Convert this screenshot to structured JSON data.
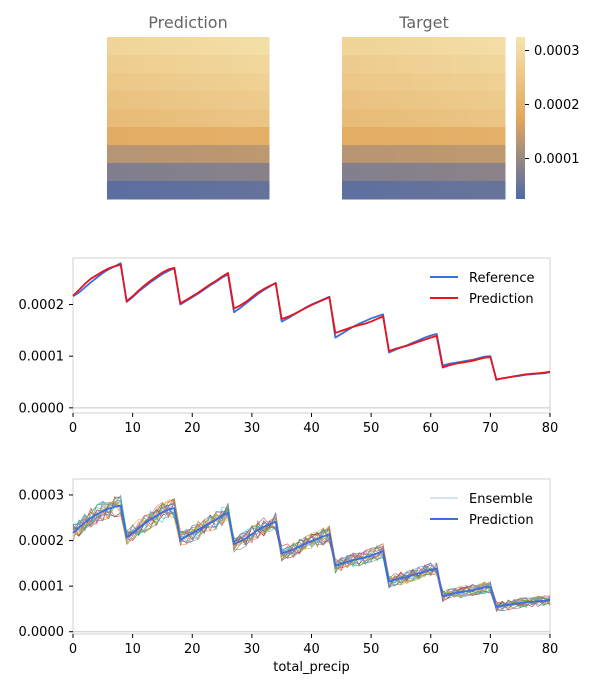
{
  "colors": {
    "heat_low": "#4f69a6",
    "heat_mid": "#e2a85e",
    "heat_high": "#f5e4ae",
    "reference": "#3a6fe0",
    "prediction": "#e8141c",
    "ensemble_prediction": "#3a6fe0",
    "axes_spine": "#d0d0d0",
    "title_text": "#666666"
  },
  "chart_data": [
    {
      "type": "heatmap",
      "title": "Prediction",
      "rows": 9,
      "cols": 9,
      "row_means": [
        0.000298,
        0.00028,
        0.000266,
        0.000251,
        0.000235,
        0.00019,
        0.000133,
        7.9e-05,
        4.2e-05
      ],
      "col_offsets": [
        -1.2e-05,
        -9e-06,
        -6e-06,
        -3e-06,
        0.0,
        3e-06,
        6e-06,
        9e-06,
        1.2e-05
      ]
    },
    {
      "type": "heatmap",
      "title": "Target",
      "rows": 9,
      "cols": 9,
      "row_means": [
        0.000296,
        0.000278,
        0.000264,
        0.00025,
        0.000236,
        0.000191,
        0.000135,
        8.2e-05,
        4.5e-05
      ],
      "col_offsets": [
        -1.2e-05,
        -9e-06,
        -6e-06,
        -3e-06,
        0.0,
        3e-06,
        6e-06,
        9e-06,
        1.2e-05
      ],
      "colorbar": {
        "min": 2.5e-05,
        "max": 0.000325,
        "ticks": [
          {
            "value": 0.0001,
            "label": "0.0001"
          },
          {
            "value": 0.0002,
            "label": "0.0002"
          },
          {
            "value": 0.0003,
            "label": "0.0003"
          }
        ]
      }
    },
    {
      "type": "line",
      "xlabel": "",
      "xlim": [
        0,
        80
      ],
      "ylim": [
        -1e-05,
        0.00029
      ],
      "xticks": [
        {
          "value": 0,
          "label": "0"
        },
        {
          "value": 10,
          "label": "10"
        },
        {
          "value": 20,
          "label": "20"
        },
        {
          "value": 30,
          "label": "30"
        },
        {
          "value": 40,
          "label": "40"
        },
        {
          "value": 50,
          "label": "50"
        },
        {
          "value": 60,
          "label": "60"
        },
        {
          "value": 70,
          "label": "70"
        },
        {
          "value": 80,
          "label": "80"
        }
      ],
      "yticks": [
        {
          "value": 0,
          "label": "0.0000"
        },
        {
          "value": 0.0001,
          "label": "0.0001"
        },
        {
          "value": 0.0002,
          "label": "0.0002"
        }
      ],
      "legend": {
        "position": "top-right"
      },
      "series": [
        {
          "name": "Reference",
          "x": [
            0,
            1,
            2,
            3,
            4,
            5,
            6,
            7,
            8,
            9,
            10,
            11,
            12,
            13,
            14,
            15,
            16,
            17,
            18,
            19,
            20,
            21,
            22,
            23,
            24,
            25,
            26,
            27,
            28,
            29,
            30,
            31,
            32,
            33,
            34,
            35,
            36,
            37,
            38,
            39,
            40,
            41,
            42,
            43,
            44,
            45,
            46,
            47,
            48,
            49,
            50,
            51,
            52,
            53,
            54,
            55,
            56,
            57,
            58,
            59,
            60,
            61,
            62,
            63,
            64,
            65,
            66,
            67,
            68,
            69,
            70,
            71,
            72,
            73,
            74,
            75,
            76,
            77,
            78,
            79,
            80
          ],
          "y": [
            0.000216,
            0.000223,
            0.000233,
            0.000243,
            0.000252,
            0.000261,
            0.000268,
            0.000274,
            0.00028,
            0.000205,
            0.000214,
            0.000225,
            0.000234,
            0.000243,
            0.000251,
            0.000259,
            0.000265,
            0.00027,
            0.0002,
            0.000207,
            0.000214,
            0.000221,
            0.000229,
            0.000237,
            0.000244,
            0.000252,
            0.000258,
            0.000185,
            0.000193,
            0.000202,
            0.000211,
            0.00022,
            0.000228,
            0.000235,
            0.000242,
            0.000167,
            0.000173,
            0.00018,
            0.000187,
            0.000194,
            0.0002,
            0.000205,
            0.00021,
            0.000215,
            0.000136,
            0.000143,
            0.00015,
            0.000157,
            0.000163,
            0.000168,
            0.000173,
            0.000177,
            0.000181,
            0.000107,
            0.000112,
            0.000117,
            0.000121,
            0.000126,
            0.000131,
            0.000136,
            0.00014,
            0.000143,
            8.2e-05,
            8.5e-05,
            8.7e-05,
            8.9e-05,
            9.1e-05,
            9.3e-05,
            9.6e-05,
            9.9e-05,
            0.0001,
            5.4e-05,
            5.7e-05,
            5.9e-05,
            6.1e-05,
            6.2e-05,
            6.4e-05,
            6.5e-05,
            6.6e-05,
            6.7e-05,
            6.9e-05
          ]
        },
        {
          "name": "Prediction",
          "x": [
            0,
            1,
            2,
            3,
            4,
            5,
            6,
            7,
            8,
            9,
            10,
            11,
            12,
            13,
            14,
            15,
            16,
            17,
            18,
            19,
            20,
            21,
            22,
            23,
            24,
            25,
            26,
            27,
            28,
            29,
            30,
            31,
            32,
            33,
            34,
            35,
            36,
            37,
            38,
            39,
            40,
            41,
            42,
            43,
            44,
            45,
            46,
            47,
            48,
            49,
            50,
            51,
            52,
            53,
            54,
            55,
            56,
            57,
            58,
            59,
            60,
            61,
            62,
            63,
            64,
            65,
            66,
            67,
            68,
            69,
            70,
            71,
            72,
            73,
            74,
            75,
            76,
            77,
            78,
            79,
            80
          ],
          "y": [
            0.000217,
            0.000228,
            0.00024,
            0.00025,
            0.000257,
            0.000264,
            0.00027,
            0.000274,
            0.000277,
            0.000206,
            0.000216,
            0.000227,
            0.000237,
            0.000246,
            0.000254,
            0.000262,
            0.000268,
            0.000271,
            0.000202,
            0.000209,
            0.000216,
            0.000223,
            0.000231,
            0.000239,
            0.000246,
            0.000254,
            0.000261,
            0.000192,
            0.000198,
            0.000205,
            0.000214,
            0.000223,
            0.00023,
            0.000236,
            0.000241,
            0.000172,
            0.000176,
            0.000181,
            0.000187,
            0.000193,
            0.000199,
            0.000204,
            0.000209,
            0.000214,
            0.000145,
            0.000149,
            0.000153,
            0.000157,
            0.00016,
            0.000163,
            0.000167,
            0.000172,
            0.000177,
            0.00011,
            0.000114,
            0.000117,
            0.00012,
            0.000124,
            0.000128,
            0.000132,
            0.000136,
            0.000139,
            7.8e-05,
            8.2e-05,
            8.5e-05,
            8.7e-05,
            8.9e-05,
            9.1e-05,
            9.4e-05,
            9.7e-05,
            9.8e-05,
            5.5e-05,
            5.7e-05,
            5.9e-05,
            6.1e-05,
            6.3e-05,
            6.5e-05,
            6.6e-05,
            6.7e-05,
            6.8e-05,
            7e-05
          ]
        }
      ]
    },
    {
      "type": "line",
      "xlabel": "total_precip",
      "xlim": [
        0,
        80
      ],
      "ylim": [
        -5e-06,
        0.000335
      ],
      "xticks": [
        {
          "value": 0,
          "label": "0"
        },
        {
          "value": 10,
          "label": "10"
        },
        {
          "value": 20,
          "label": "20"
        },
        {
          "value": 30,
          "label": "30"
        },
        {
          "value": 40,
          "label": "40"
        },
        {
          "value": 50,
          "label": "50"
        },
        {
          "value": 60,
          "label": "60"
        },
        {
          "value": 70,
          "label": "70"
        },
        {
          "value": 80,
          "label": "80"
        }
      ],
      "yticks": [
        {
          "value": 0,
          "label": "0.0000"
        },
        {
          "value": 0.0001,
          "label": "0.0001"
        },
        {
          "value": 0.0002,
          "label": "0.0002"
        },
        {
          "value": 0.0003,
          "label": "0.0003"
        }
      ],
      "legend": {
        "position": "top-right"
      },
      "ensemble_members": 20,
      "ensemble_spread": 2.4e-05,
      "ensemble_colors": [
        "#1f77b4",
        "#ff7f0e",
        "#2ca02c",
        "#d62728",
        "#9467bd",
        "#8c564b",
        "#e377c2",
        "#7f7f7f",
        "#bcbd22",
        "#17becf"
      ],
      "series": [
        {
          "name": "Ensemble",
          "style": "thin multicolor lines"
        },
        {
          "name": "Prediction",
          "x": [
            0,
            1,
            2,
            3,
            4,
            5,
            6,
            7,
            8,
            9,
            10,
            11,
            12,
            13,
            14,
            15,
            16,
            17,
            18,
            19,
            20,
            21,
            22,
            23,
            24,
            25,
            26,
            27,
            28,
            29,
            30,
            31,
            32,
            33,
            34,
            35,
            36,
            37,
            38,
            39,
            40,
            41,
            42,
            43,
            44,
            45,
            46,
            47,
            48,
            49,
            50,
            51,
            52,
            53,
            54,
            55,
            56,
            57,
            58,
            59,
            60,
            61,
            62,
            63,
            64,
            65,
            66,
            67,
            68,
            69,
            70,
            71,
            72,
            73,
            74,
            75,
            76,
            77,
            78,
            79,
            80
          ],
          "y": [
            0.000217,
            0.000228,
            0.00024,
            0.00025,
            0.000257,
            0.000264,
            0.00027,
            0.000274,
            0.000277,
            0.000206,
            0.000216,
            0.000227,
            0.000237,
            0.000246,
            0.000254,
            0.000262,
            0.000268,
            0.000271,
            0.000202,
            0.000209,
            0.000216,
            0.000223,
            0.000231,
            0.000239,
            0.000246,
            0.000254,
            0.000261,
            0.000192,
            0.000198,
            0.000205,
            0.000214,
            0.000223,
            0.00023,
            0.000236,
            0.000241,
            0.000172,
            0.000176,
            0.000181,
            0.000187,
            0.000193,
            0.000199,
            0.000204,
            0.000209,
            0.000214,
            0.000145,
            0.000149,
            0.000153,
            0.000157,
            0.00016,
            0.000163,
            0.000167,
            0.000172,
            0.000177,
            0.00011,
            0.000114,
            0.000117,
            0.00012,
            0.000124,
            0.000128,
            0.000132,
            0.000136,
            0.000139,
            7.8e-05,
            8.2e-05,
            8.5e-05,
            8.7e-05,
            8.9e-05,
            9.1e-05,
            9.4e-05,
            9.7e-05,
            9.8e-05,
            5.5e-05,
            5.7e-05,
            5.9e-05,
            6.1e-05,
            6.3e-05,
            6.5e-05,
            6.6e-05,
            6.7e-05,
            6.8e-05,
            7e-05
          ]
        }
      ]
    }
  ]
}
